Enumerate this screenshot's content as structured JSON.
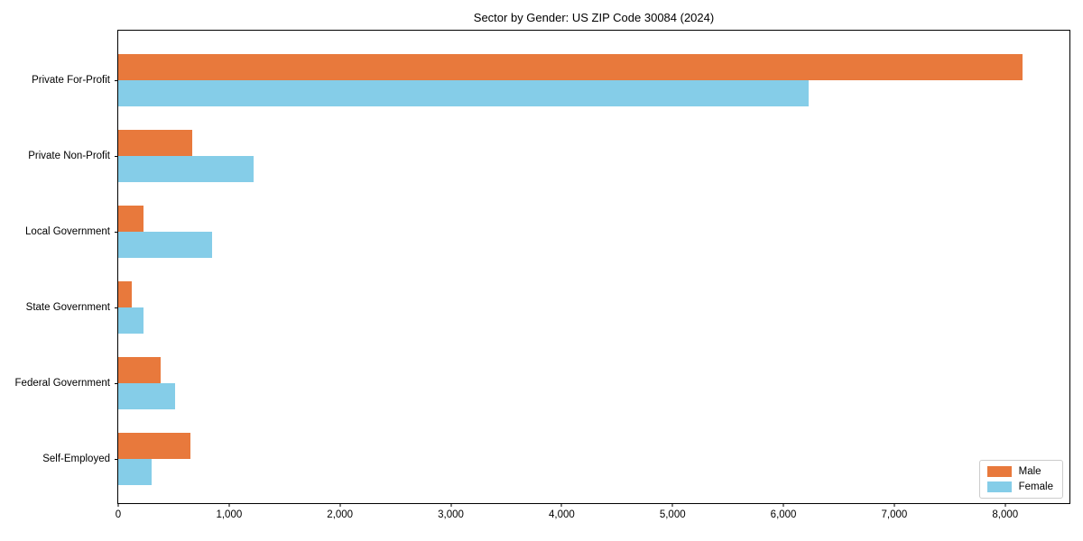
{
  "chart_data": {
    "type": "bar",
    "orientation": "horizontal",
    "title": "Sector by Gender: US ZIP Code 30084 (2024)",
    "xlabel": "",
    "ylabel": "",
    "categories": [
      "Private For-Profit",
      "Private Non-Profit",
      "Local Government",
      "State Government",
      "Federal Government",
      "Self-Employed"
    ],
    "series": [
      {
        "name": "Male",
        "color": "#e8793c",
        "values": [
          8160,
          665,
          225,
          125,
          380,
          650
        ]
      },
      {
        "name": "Female",
        "color": "#85cde8",
        "values": [
          6225,
          1220,
          845,
          230,
          510,
          305
        ]
      }
    ],
    "xlim": [
      0,
      8580
    ],
    "xticks": {
      "values": [
        0,
        1000,
        2000,
        3000,
        4000,
        5000,
        6000,
        7000,
        8000
      ],
      "labels": [
        "0",
        "1,000",
        "2,000",
        "3,000",
        "4,000",
        "5,000",
        "6,000",
        "7,000",
        "8,000"
      ]
    },
    "legend": {
      "position": "lower right",
      "entries": [
        "Male",
        "Female"
      ]
    },
    "grid": false,
    "background_color": "#ffffff",
    "frame_color": "#000000"
  }
}
